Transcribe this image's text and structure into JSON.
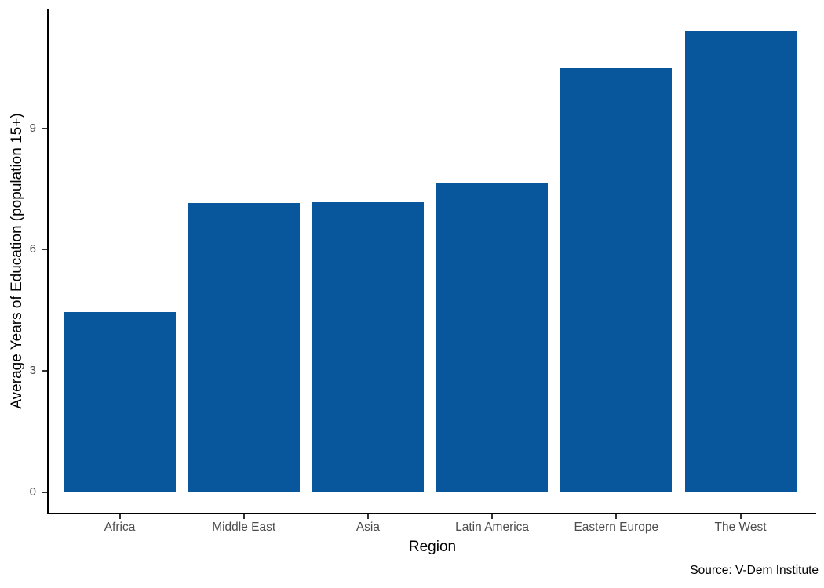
{
  "chart_data": {
    "type": "bar",
    "categories": [
      "Africa",
      "Middle East",
      "Asia",
      "Latin America",
      "Eastern Europe",
      "The West"
    ],
    "values": [
      4.46,
      7.15,
      7.17,
      7.64,
      10.48,
      11.39
    ],
    "title": "",
    "xlabel": "Region",
    "ylabel": "Average Years of Education (population 15+)",
    "caption": "Source: V-Dem Institute",
    "yticks": [
      0,
      3,
      6,
      9
    ],
    "ylim": [
      0,
      12
    ],
    "grid": "off",
    "legend": "none",
    "colors": {
      "bar": "#08579C",
      "axis_line": "#000000",
      "tick_mark": "#333333",
      "axis_text": "#4D4D4D",
      "axis_title": "#000000",
      "background": "#FFFFFF"
    }
  }
}
